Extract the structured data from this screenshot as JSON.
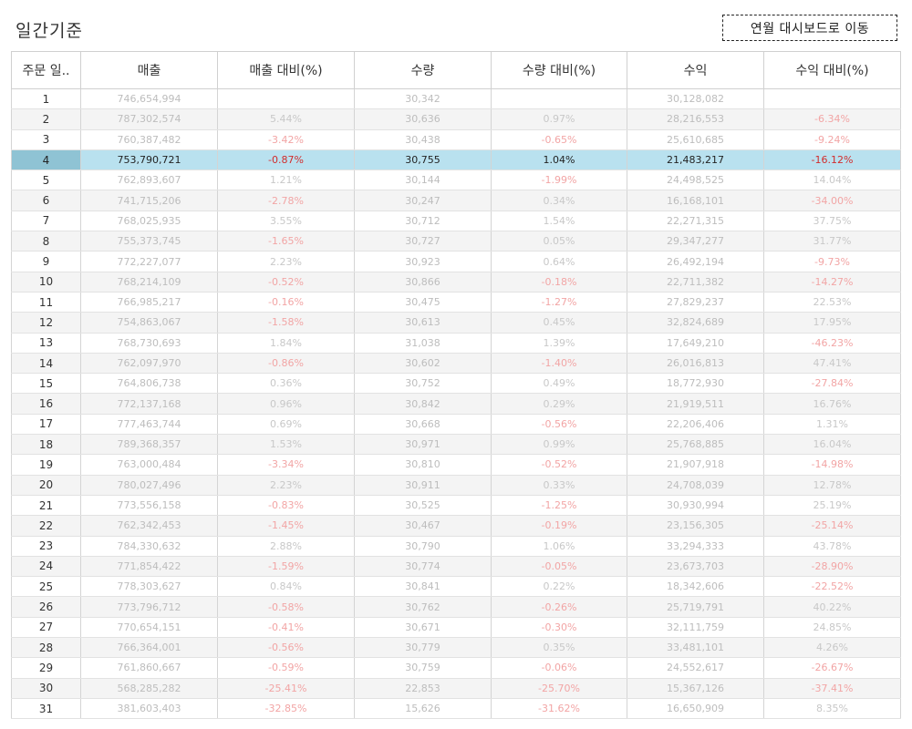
{
  "page_title": "일간기준",
  "nav_button_label": "연월 대시보드로 이동",
  "table": {
    "headers": [
      "주문 일..",
      "매출",
      "매출 대비(%)",
      "수량",
      "수량 대비(%)",
      "수익",
      "수익 대비(%)"
    ],
    "selected_row": 3,
    "rows": [
      [
        "1",
        "746,654,994",
        "",
        "30,342",
        "",
        "30,128,082",
        ""
      ],
      [
        "2",
        "787,302,574",
        "5.44%",
        "30,636",
        "0.97%",
        "28,216,553",
        "-6.34%"
      ],
      [
        "3",
        "760,387,482",
        "-3.42%",
        "30,438",
        "-0.65%",
        "25,610,685",
        "-9.24%"
      ],
      [
        "4",
        "753,790,721",
        "-0.87%",
        "30,755",
        "1.04%",
        "21,483,217",
        "-16.12%"
      ],
      [
        "5",
        "762,893,607",
        "1.21%",
        "30,144",
        "-1.99%",
        "24,498,525",
        "14.04%"
      ],
      [
        "6",
        "741,715,206",
        "-2.78%",
        "30,247",
        "0.34%",
        "16,168,101",
        "-34.00%"
      ],
      [
        "7",
        "768,025,935",
        "3.55%",
        "30,712",
        "1.54%",
        "22,271,315",
        "37.75%"
      ],
      [
        "8",
        "755,373,745",
        "-1.65%",
        "30,727",
        "0.05%",
        "29,347,277",
        "31.77%"
      ],
      [
        "9",
        "772,227,077",
        "2.23%",
        "30,923",
        "0.64%",
        "26,492,194",
        "-9.73%"
      ],
      [
        "10",
        "768,214,109",
        "-0.52%",
        "30,866",
        "-0.18%",
        "22,711,382",
        "-14.27%"
      ],
      [
        "11",
        "766,985,217",
        "-0.16%",
        "30,475",
        "-1.27%",
        "27,829,237",
        "22.53%"
      ],
      [
        "12",
        "754,863,067",
        "-1.58%",
        "30,613",
        "0.45%",
        "32,824,689",
        "17.95%"
      ],
      [
        "13",
        "768,730,693",
        "1.84%",
        "31,038",
        "1.39%",
        "17,649,210",
        "-46.23%"
      ],
      [
        "14",
        "762,097,970",
        "-0.86%",
        "30,602",
        "-1.40%",
        "26,016,813",
        "47.41%"
      ],
      [
        "15",
        "764,806,738",
        "0.36%",
        "30,752",
        "0.49%",
        "18,772,930",
        "-27.84%"
      ],
      [
        "16",
        "772,137,168",
        "0.96%",
        "30,842",
        "0.29%",
        "21,919,511",
        "16.76%"
      ],
      [
        "17",
        "777,463,744",
        "0.69%",
        "30,668",
        "-0.56%",
        "22,206,406",
        "1.31%"
      ],
      [
        "18",
        "789,368,357",
        "1.53%",
        "30,971",
        "0.99%",
        "25,768,885",
        "16.04%"
      ],
      [
        "19",
        "763,000,484",
        "-3.34%",
        "30,810",
        "-0.52%",
        "21,907,918",
        "-14.98%"
      ],
      [
        "20",
        "780,027,496",
        "2.23%",
        "30,911",
        "0.33%",
        "24,708,039",
        "12.78%"
      ],
      [
        "21",
        "773,556,158",
        "-0.83%",
        "30,525",
        "-1.25%",
        "30,930,994",
        "25.19%"
      ],
      [
        "22",
        "762,342,453",
        "-1.45%",
        "30,467",
        "-0.19%",
        "23,156,305",
        "-25.14%"
      ],
      [
        "23",
        "784,330,632",
        "2.88%",
        "30,790",
        "1.06%",
        "33,294,333",
        "43.78%"
      ],
      [
        "24",
        "771,854,422",
        "-1.59%",
        "30,774",
        "-0.05%",
        "23,673,703",
        "-28.90%"
      ],
      [
        "25",
        "778,303,627",
        "0.84%",
        "30,841",
        "0.22%",
        "18,342,606",
        "-22.52%"
      ],
      [
        "26",
        "773,796,712",
        "-0.58%",
        "30,762",
        "-0.26%",
        "25,719,791",
        "40.22%"
      ],
      [
        "27",
        "770,654,151",
        "-0.41%",
        "30,671",
        "-0.30%",
        "32,111,759",
        "24.85%"
      ],
      [
        "28",
        "766,364,001",
        "-0.56%",
        "30,779",
        "0.35%",
        "33,481,101",
        "4.26%"
      ],
      [
        "29",
        "761,860,667",
        "-0.59%",
        "30,759",
        "-0.06%",
        "24,552,617",
        "-26.67%"
      ],
      [
        "30",
        "568,285,282",
        "-25.41%",
        "22,853",
        "-25.70%",
        "15,367,126",
        "-37.41%"
      ],
      [
        "31",
        "381,603,403",
        "-32.85%",
        "15,626",
        "-31.62%",
        "16,650,909",
        "8.35%"
      ]
    ]
  }
}
